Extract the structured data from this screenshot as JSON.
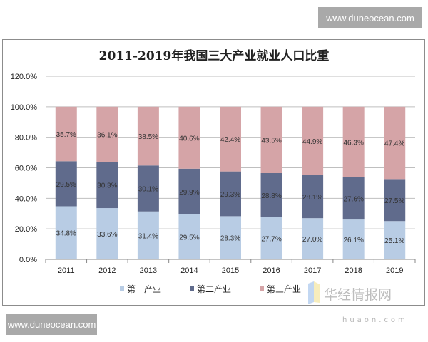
{
  "watermarks": {
    "top": "www.duneocean.com",
    "bottom": "www.duneocean.com",
    "logo": "华经情报网",
    "logo_sub": "huaon.com"
  },
  "chart_data": {
    "type": "bar",
    "stacked": true,
    "title": "2011-2019年我国三大产业就业人口比重",
    "xlabel": "",
    "ylabel": "",
    "ylim": [
      0,
      120
    ],
    "yticks": [
      "0.0%",
      "20.0%",
      "40.0%",
      "60.0%",
      "80.0%",
      "100.0%",
      "120.0%"
    ],
    "grid": true,
    "legend": "bottom",
    "categories": [
      "2011",
      "2012",
      "2013",
      "2014",
      "2015",
      "2016",
      "2017",
      "2018",
      "2019"
    ],
    "series": [
      {
        "name": "第一产业",
        "color": "#b8cce4",
        "values": [
          34.8,
          33.6,
          31.4,
          29.5,
          28.3,
          27.7,
          27.0,
          26.1,
          25.1
        ]
      },
      {
        "name": "第二产业",
        "color": "#606b8c",
        "values": [
          29.5,
          30.3,
          30.1,
          29.9,
          29.3,
          28.8,
          28.1,
          27.6,
          27.5
        ]
      },
      {
        "name": "第三产业",
        "color": "#d5a4a7",
        "values": [
          35.7,
          36.1,
          38.5,
          40.6,
          42.4,
          43.5,
          44.9,
          46.3,
          47.4
        ]
      }
    ]
  }
}
